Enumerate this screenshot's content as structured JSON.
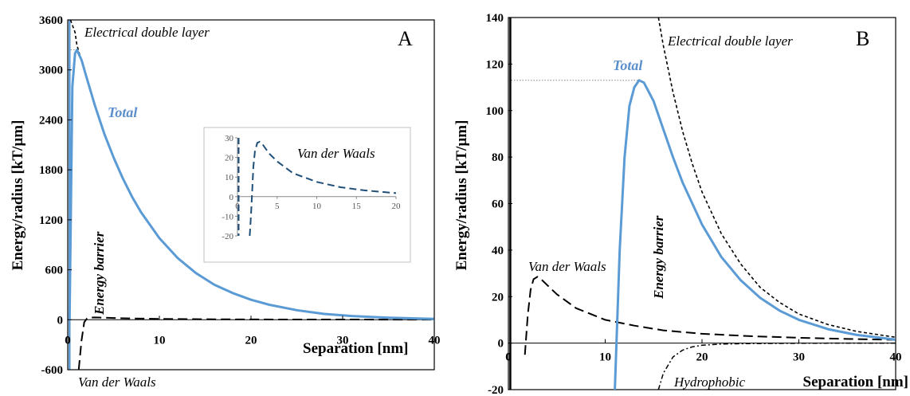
{
  "chart_data": [
    {
      "type": "line",
      "panel_label": "A",
      "ylabel": "Energy/radius [kT/µm]",
      "xlabel": "Separation [nm]",
      "xlim": [
        0,
        40
      ],
      "ylim": [
        -600,
        3600
      ],
      "xticks": [
        "0",
        "10",
        "20",
        "30",
        "40"
      ],
      "yticks": [
        "-600",
        "0",
        "600",
        "1200",
        "1800",
        "2400",
        "3000",
        "3600"
      ],
      "grid": false,
      "annotations": {
        "total": "Total",
        "edl": "Electrical double layer",
        "vdw": "Van der Waals",
        "barrier": "Energy barrier"
      },
      "barrier_max": 3240,
      "series": [
        {
          "name": "Total",
          "x": [
            0.2,
            0.5,
            0.8,
            1,
            1.5,
            2,
            3,
            4,
            5,
            6,
            7,
            8,
            10,
            12,
            14,
            16,
            18,
            20,
            22,
            25,
            28,
            31,
            35,
            40
          ],
          "values": [
            0,
            2800,
            3200,
            3240,
            3120,
            2930,
            2560,
            2230,
            1950,
            1700,
            1480,
            1290,
            980,
            740,
            560,
            420,
            320,
            240,
            180,
            115,
            70,
            45,
            25,
            10
          ]
        },
        {
          "name": "Electrical double layer",
          "x": [
            0.3,
            0.8,
            1,
            1.5,
            2,
            3,
            4,
            5,
            6,
            7,
            8,
            10,
            12,
            14,
            16,
            18,
            20,
            22,
            25,
            28,
            31,
            35,
            40
          ],
          "values": [
            3700,
            3450,
            3300,
            3110,
            2920,
            2550,
            2230,
            1950,
            1700,
            1480,
            1290,
            980,
            740,
            560,
            420,
            320,
            240,
            180,
            115,
            70,
            45,
            25,
            10
          ]
        },
        {
          "name": "Van der Waals",
          "x": [
            1.2,
            1.5,
            1.8,
            2.1,
            2.6,
            3,
            4,
            5,
            7,
            10,
            13,
            16,
            20,
            25,
            30,
            35,
            40
          ],
          "values": [
            -600,
            -250,
            -30,
            15,
            27,
            28,
            25,
            21,
            15,
            10,
            7.5,
            5.5,
            4,
            3,
            2.3,
            1.8,
            1.4
          ]
        }
      ],
      "inset": {
        "label": "Van der Waals",
        "xlim": [
          0,
          20
        ],
        "ylim": [
          -20,
          30
        ],
        "xticks": [
          "0",
          "5",
          "10",
          "15",
          "20"
        ],
        "yticks": [
          "-20",
          "-10",
          "0",
          "10",
          "20",
          "30"
        ],
        "x": [
          1.55,
          1.7,
          1.85,
          2.0,
          2.2,
          2.5,
          2.8,
          3.2,
          4,
          5,
          7,
          10,
          13,
          16,
          20
        ],
        "values": [
          -20,
          -10,
          2,
          15,
          23,
          27.5,
          28,
          26.5,
          22,
          18,
          12,
          7.5,
          4.8,
          3.2,
          1.8
        ]
      }
    },
    {
      "type": "line",
      "panel_label": "B",
      "ylabel": "Energy/radius [kT/µm]",
      "xlabel": "Separation [nm]",
      "xlim": [
        0,
        40
      ],
      "ylim": [
        -20,
        140
      ],
      "xticks": [
        "0",
        "10",
        "20",
        "30",
        "40"
      ],
      "yticks": [
        "-20",
        "0",
        "20",
        "40",
        "60",
        "80",
        "100",
        "120",
        "140"
      ],
      "grid": false,
      "annotations": {
        "total": "Total",
        "edl": "Electrical double layer",
        "vdw": "Van der Waals",
        "barrier": "Energy barrier",
        "hydrophobic": "Hydrophobic"
      },
      "barrier_max": 113,
      "series": [
        {
          "name": "Total",
          "x": [
            11,
            11.5,
            12,
            12.5,
            13,
            13.5,
            14,
            15,
            16,
            17,
            18,
            20,
            22,
            24,
            26,
            28,
            30,
            33,
            36,
            40
          ],
          "values": [
            -20,
            40,
            80,
            102,
            110,
            113,
            112,
            104,
            92,
            80,
            69,
            51,
            37,
            27,
            19.5,
            14,
            10,
            6,
            3.5,
            1.5
          ]
        },
        {
          "name": "Electrical double layer",
          "x": [
            15.5,
            16,
            17,
            18,
            19,
            20,
            22,
            24,
            26,
            28,
            30,
            33,
            36,
            40
          ],
          "values": [
            140,
            128,
            108,
            91,
            77,
            65,
            47,
            34,
            24,
            17.5,
            12.5,
            8,
            5,
            2.5
          ]
        },
        {
          "name": "Van der Waals",
          "x": [
            1.7,
            2.0,
            2.3,
            2.6,
            3,
            3.5,
            4,
            5,
            7,
            10,
            13,
            16,
            20,
            25,
            30,
            35,
            40
          ],
          "values": [
            -5,
            12,
            23,
            27.5,
            28.5,
            27,
            25,
            21,
            15,
            10,
            7.5,
            5.5,
            4,
            3,
            2.3,
            1.8,
            1.4
          ]
        },
        {
          "name": "Hydrophobic",
          "x": [
            15.5,
            16,
            17,
            18,
            19,
            20,
            22,
            25,
            30,
            35,
            40
          ],
          "values": [
            -22,
            -13,
            -6,
            -3,
            -1.6,
            -0.9,
            -0.4,
            -0.2,
            -0.05,
            0,
            0
          ]
        }
      ]
    }
  ]
}
